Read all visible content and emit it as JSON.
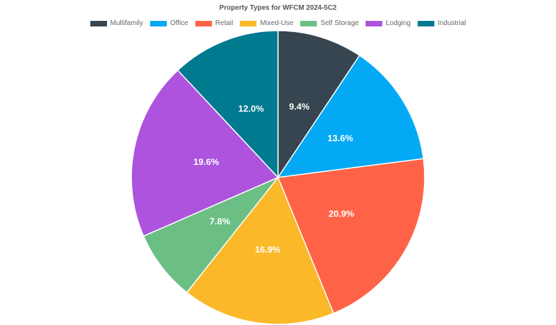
{
  "chart_data": {
    "type": "pie",
    "title": "Property Types for WFCM 2024-5C2",
    "legend_position": "top",
    "slices": [
      {
        "name": "Multifamily",
        "value": 9.4,
        "label": "9.4%",
        "color": "#36454f"
      },
      {
        "name": "Office",
        "value": 13.6,
        "label": "13.6%",
        "color": "#03a9f4"
      },
      {
        "name": "Retail",
        "value": 20.9,
        "label": "20.9%",
        "color": "#ff6347"
      },
      {
        "name": "Mixed-Use",
        "value": 16.9,
        "label": "16.9%",
        "color": "#fbb829"
      },
      {
        "name": "Self Storage",
        "value": 7.8,
        "label": "7.8%",
        "color": "#6bbf84"
      },
      {
        "name": "Lodging",
        "value": 19.6,
        "label": "19.6%",
        "color": "#ad53dd"
      },
      {
        "name": "Industrial",
        "value": 12.0,
        "label": "12.0%",
        "color": "#007a8f"
      }
    ]
  }
}
